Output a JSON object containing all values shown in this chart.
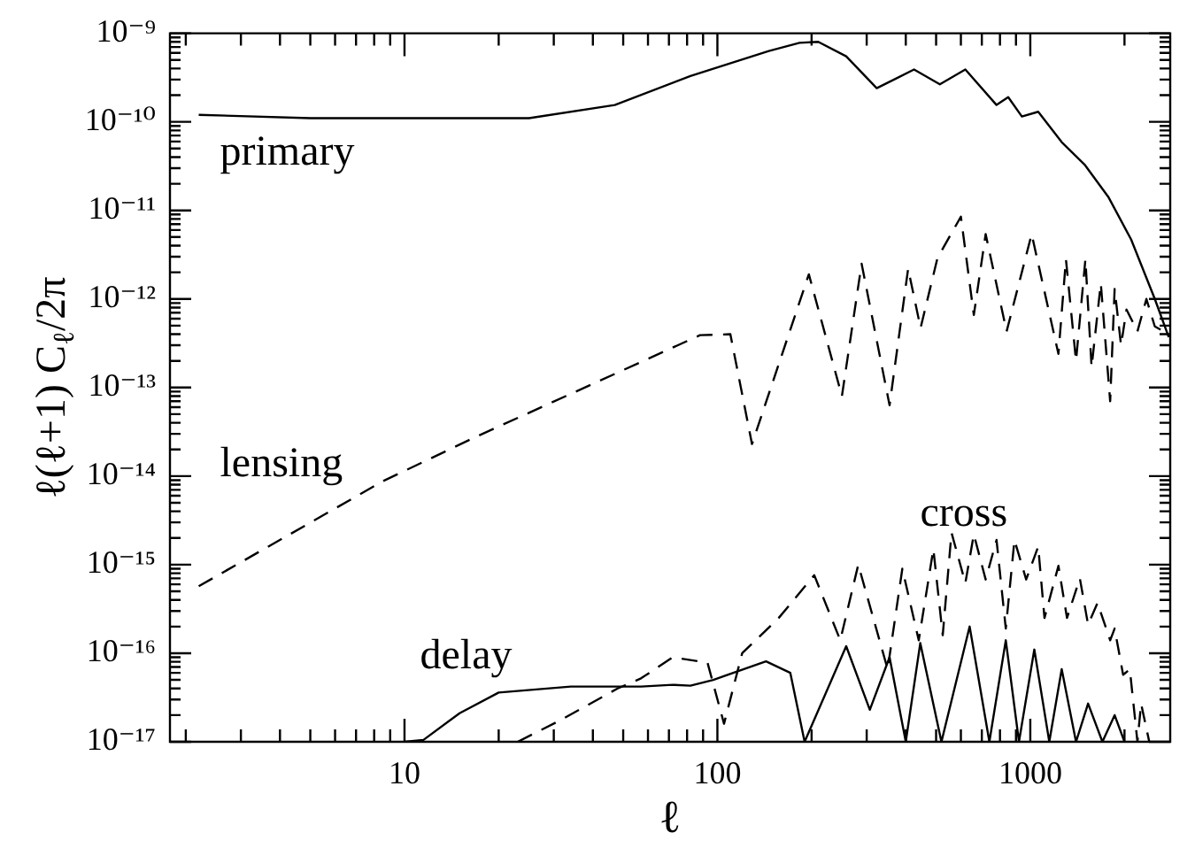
{
  "chart_data": {
    "type": "line",
    "xlabel": "ℓ",
    "ylabel": "ℓ(ℓ+1) C$_{ℓ}$/2π",
    "log": "xy",
    "marker": "none",
    "legend": false,
    "xlim": [
      1.78,
      2800
    ],
    "ylim": [
      1e-17,
      1e-09
    ],
    "xticks": [
      {
        "value": 2,
        "label": null
      },
      {
        "value": 3,
        "label": null
      },
      {
        "value": 4,
        "label": null
      },
      {
        "value": 5,
        "label": null
      },
      {
        "value": 6,
        "label": null
      },
      {
        "value": 7,
        "label": null
      },
      {
        "value": 8,
        "label": null
      },
      {
        "value": 9,
        "label": null
      },
      10,
      {
        "value": 20,
        "label": null
      },
      {
        "value": 30,
        "label": null
      },
      {
        "value": 40,
        "label": null
      },
      {
        "value": 50,
        "label": null
      },
      {
        "value": 60,
        "label": null
      },
      {
        "value": 70,
        "label": null
      },
      {
        "value": 80,
        "label": null
      },
      {
        "value": 90,
        "label": null
      },
      100,
      {
        "value": 200,
        "label": null
      },
      {
        "value": 300,
        "label": null
      },
      {
        "value": 400,
        "label": null
      },
      {
        "value": 500,
        "label": null
      },
      {
        "value": 600,
        "label": null
      },
      {
        "value": 700,
        "label": null
      },
      {
        "value": 800,
        "label": null
      },
      {
        "value": 900,
        "label": null
      },
      1000,
      {
        "value": 2000,
        "label": null
      }
    ],
    "yticks": [
      {
        "value": 1e-17,
        "label": "10⁻¹⁷"
      },
      {
        "value": 2e-17,
        "label": null
      },
      {
        "value": 3e-17,
        "label": null
      },
      {
        "value": 4e-17,
        "label": null
      },
      {
        "value": 5e-17,
        "label": null
      },
      {
        "value": 6e-17,
        "label": null
      },
      {
        "value": 7e-17,
        "label": null
      },
      {
        "value": 8e-17,
        "label": null
      },
      {
        "value": 9e-17,
        "label": null
      },
      {
        "value": 1e-16,
        "label": "10⁻¹⁶"
      },
      {
        "value": 2e-16,
        "label": null
      },
      {
        "value": 3e-16,
        "label": null
      },
      {
        "value": 4e-16,
        "label": null
      },
      {
        "value": 5e-16,
        "label": null
      },
      {
        "value": 6e-16,
        "label": null
      },
      {
        "value": 7e-16,
        "label": null
      },
      {
        "value": 8e-16,
        "label": null
      },
      {
        "value": 9e-16,
        "label": null
      },
      {
        "value": 1e-15,
        "label": "10⁻¹⁵"
      },
      {
        "value": 2e-15,
        "label": null
      },
      {
        "value": 3e-15,
        "label": null
      },
      {
        "value": 4e-15,
        "label": null
      },
      {
        "value": 5e-15,
        "label": null
      },
      {
        "value": 6e-15,
        "label": null
      },
      {
        "value": 7e-15,
        "label": null
      },
      {
        "value": 8e-15,
        "label": null
      },
      {
        "value": 9e-15,
        "label": null
      },
      {
        "value": 1e-14,
        "label": "10⁻¹⁴"
      },
      {
        "value": 2e-14,
        "label": null
      },
      {
        "value": 3e-14,
        "label": null
      },
      {
        "value": 4e-14,
        "label": null
      },
      {
        "value": 5e-14,
        "label": null
      },
      {
        "value": 6e-14,
        "label": null
      },
      {
        "value": 7e-14,
        "label": null
      },
      {
        "value": 8e-14,
        "label": null
      },
      {
        "value": 9e-14,
        "label": null
      },
      {
        "value": 1e-13,
        "label": "10⁻¹³"
      },
      {
        "value": 2e-13,
        "label": null
      },
      {
        "value": 3e-13,
        "label": null
      },
      {
        "value": 4e-13,
        "label": null
      },
      {
        "value": 5e-13,
        "label": null
      },
      {
        "value": 6e-13,
        "label": null
      },
      {
        "value": 7e-13,
        "label": null
      },
      {
        "value": 8e-13,
        "label": null
      },
      {
        "value": 9e-13,
        "label": null
      },
      {
        "value": 1e-12,
        "label": "10⁻¹²"
      },
      {
        "value": 2e-12,
        "label": null
      },
      {
        "value": 3e-12,
        "label": null
      },
      {
        "value": 4e-12,
        "label": null
      },
      {
        "value": 5e-12,
        "label": null
      },
      {
        "value": 6e-12,
        "label": null
      },
      {
        "value": 7e-12,
        "label": null
      },
      {
        "value": 8e-12,
        "label": null
      },
      {
        "value": 9e-12,
        "label": null
      },
      {
        "value": 1e-11,
        "label": "10⁻¹¹"
      },
      {
        "value": 2e-11,
        "label": null
      },
      {
        "value": 3e-11,
        "label": null
      },
      {
        "value": 4e-11,
        "label": null
      },
      {
        "value": 5e-11,
        "label": null
      },
      {
        "value": 6e-11,
        "label": null
      },
      {
        "value": 7e-11,
        "label": null
      },
      {
        "value": 8e-11,
        "label": null
      },
      {
        "value": 9e-11,
        "label": null
      },
      {
        "value": 1e-10,
        "label": "10⁻¹⁰"
      },
      {
        "value": 2e-10,
        "label": null
      },
      {
        "value": 3e-10,
        "label": null
      },
      {
        "value": 4e-10,
        "label": null
      },
      {
        "value": 5e-10,
        "label": null
      },
      {
        "value": 6e-10,
        "label": null
      },
      {
        "value": 7e-10,
        "label": null
      },
      {
        "value": 8e-10,
        "label": null
      },
      {
        "value": 9e-10,
        "label": null
      },
      {
        "value": 1e-09,
        "label": "10⁻⁹"
      }
    ],
    "series": [
      {
        "name": "primary",
        "color": "#000000",
        "line_style": "solid",
        "x": [
          2.2,
          5,
          10,
          25,
          47,
          82,
          146,
          183,
          210,
          258,
          323,
          425,
          514,
          620,
          780,
          850,
          940,
          1060,
          1260,
          1490,
          1780,
          2100,
          2500,
          2770
        ],
        "values": [
          1.2e-10,
          1.1e-10,
          1.1e-10,
          1.1e-10,
          1.55e-10,
          3.3e-10,
          6.3e-10,
          7.8e-10,
          8e-10,
          5.5e-10,
          2.4e-10,
          3.9e-10,
          2.65e-10,
          3.9e-10,
          1.55e-10,
          1.9e-10,
          1.15e-10,
          1.3e-10,
          5.9e-11,
          3.3e-11,
          1.4e-11,
          4.7e-12,
          1e-12,
          3.7e-13
        ]
      },
      {
        "name": "lensing",
        "color": "#000000",
        "line_style": "dashed",
        "x": [
          2.2,
          8.5,
          17,
          40,
          88,
          110,
          129,
          196,
          250,
          289,
          355,
          407,
          446,
          505,
          600,
          660,
          720,
          840,
          1010,
          1230,
          1300,
          1400,
          1500,
          1570,
          1680,
          1800,
          1860,
          1950,
          2030,
          2200,
          2350,
          2500,
          2770
        ],
        "values": [
          5.7e-16,
          8.7e-15,
          2.8e-14,
          1.1e-13,
          3.9e-13,
          4e-13,
          2.3e-14,
          1.9e-12,
          8e-14,
          2.5e-12,
          6.3e-14,
          2.2e-12,
          4.7e-13,
          2.9e-12,
          8.5e-12,
          6.6e-13,
          5.4e-12,
          4.3e-13,
          5.4e-12,
          2.4e-13,
          2.8e-12,
          2e-13,
          2.8e-12,
          1.7e-13,
          1.5e-12,
          7e-14,
          1.3e-12,
          3e-13,
          7.6e-13,
          4.3e-13,
          1e-12,
          4.9e-13,
          4e-13
        ]
      },
      {
        "name": "delay",
        "color": "#000000",
        "line_style": "solid",
        "x": [
          10,
          11.5,
          15,
          20,
          34,
          57,
          72,
          82,
          97,
          143,
          171,
          190,
          258,
          307,
          355,
          400,
          445,
          520,
          640,
          740,
          835,
          920,
          1030,
          1150,
          1260,
          1400,
          1530,
          1700,
          1860,
          2000
        ],
        "values": [
          1e-17,
          1.05e-17,
          2.1e-17,
          3.6e-17,
          4.2e-17,
          4.2e-17,
          4.4e-17,
          4.3e-17,
          5e-17,
          8.1e-17,
          6e-17,
          1e-17,
          1.2e-16,
          2.3e-17,
          9e-17,
          1e-17,
          1.3e-16,
          1e-17,
          2e-16,
          1e-17,
          1.4e-16,
          1e-17,
          1.1e-16,
          1e-17,
          6.6e-17,
          1e-17,
          2.7e-17,
          1e-17,
          2e-17,
          1e-17
        ]
      },
      {
        "name": "cross",
        "color": "#000000",
        "line_style": "dashed",
        "x": [
          23,
          31,
          48,
          57,
          72,
          93,
          105,
          120,
          157,
          204,
          247,
          282,
          350,
          390,
          440,
          490,
          525,
          560,
          620,
          660,
          720,
          780,
          835,
          890,
          970,
          1060,
          1110,
          1230,
          1310,
          1440,
          1530,
          1640,
          1800,
          1860,
          1980,
          2080,
          2200,
          2260,
          2400
        ],
        "values": [
          1e-17,
          1.7e-17,
          4e-17,
          5.2e-17,
          9e-17,
          7.8e-17,
          1.6e-17,
          1e-16,
          2.5e-16,
          7.6e-16,
          1.4e-16,
          1e-15,
          6.6e-17,
          9e-16,
          1.4e-16,
          1.5e-15,
          1.6e-16,
          2.3e-15,
          6.2e-16,
          2.2e-15,
          6.8e-16,
          1.9e-15,
          1.9e-16,
          1.9e-15,
          6.8e-16,
          1.6e-15,
          2.5e-16,
          9.7e-16,
          2.5e-16,
          7e-16,
          2.1e-16,
          3.7e-16,
          1.4e-16,
          1.9e-16,
          5.7e-17,
          6.6e-17,
          1e-17,
          2.7e-17,
          1e-17
        ]
      }
    ]
  }
}
